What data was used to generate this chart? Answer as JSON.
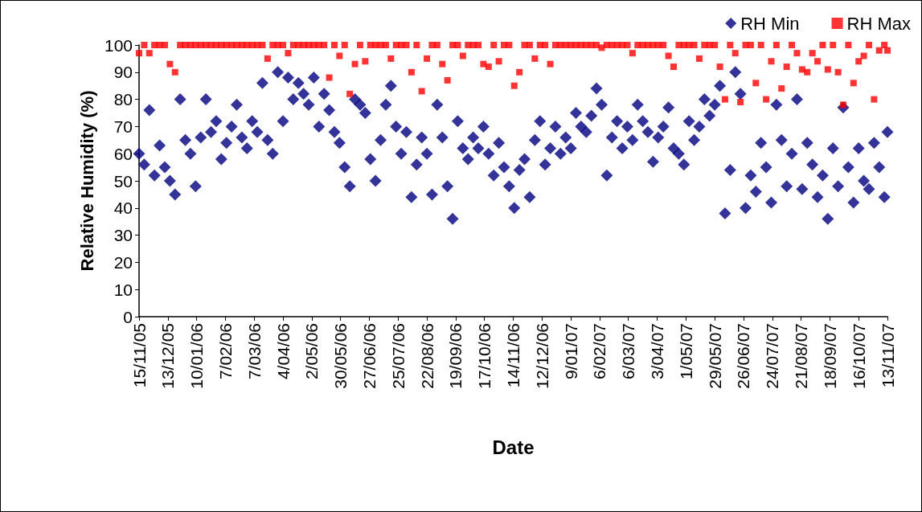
{
  "chart_data": {
    "type": "scatter",
    "xlabel": "Date",
    "ylabel": "Relative Humidity (%)",
    "legend": "top right",
    "grid": false,
    "xlim": [
      "2005-11-15",
      "2007-11-13"
    ],
    "xticks": [
      {
        "value": "2005-11-15",
        "label": "15/11/05"
      },
      {
        "value": "2005-12-13",
        "label": "13/12/05"
      },
      {
        "value": "2006-01-10",
        "label": "10/01/06"
      },
      {
        "value": "2006-02-07",
        "label": "7/02/06"
      },
      {
        "value": "2006-03-07",
        "label": "7/03/06"
      },
      {
        "value": "2006-04-04",
        "label": "4/04/06"
      },
      {
        "value": "2006-05-02",
        "label": "2/05/06"
      },
      {
        "value": "2006-05-30",
        "label": "30/05/06"
      },
      {
        "value": "2006-06-27",
        "label": "27/06/06"
      },
      {
        "value": "2006-07-25",
        "label": "25/07/06"
      },
      {
        "value": "2006-08-22",
        "label": "22/08/06"
      },
      {
        "value": "2006-09-19",
        "label": "19/09/06"
      },
      {
        "value": "2006-10-17",
        "label": "17/10/06"
      },
      {
        "value": "2006-11-14",
        "label": "14/11/06"
      },
      {
        "value": "2006-12-12",
        "label": "12/12/06"
      },
      {
        "value": "2007-01-09",
        "label": "9/01/07"
      },
      {
        "value": "2007-02-06",
        "label": "6/02/07"
      },
      {
        "value": "2007-03-06",
        "label": "6/03/07"
      },
      {
        "value": "2007-04-03",
        "label": "3/04/07"
      },
      {
        "value": "2007-05-01",
        "label": "1/05/07"
      },
      {
        "value": "2007-05-29",
        "label": "29/05/07"
      },
      {
        "value": "2007-06-26",
        "label": "26/06/07"
      },
      {
        "value": "2007-07-24",
        "label": "24/07/07"
      },
      {
        "value": "2007-08-21",
        "label": "21/08/07"
      },
      {
        "value": "2007-09-18",
        "label": "18/09/07"
      },
      {
        "value": "2007-10-16",
        "label": "16/10/07"
      },
      {
        "value": "2007-11-13",
        "label": "13/11/07"
      }
    ],
    "ylim": [
      0,
      100
    ],
    "yticks": [
      0,
      10,
      20,
      30,
      40,
      50,
      60,
      70,
      80,
      90,
      100
    ],
    "x": [
      "2005-11-15",
      "2005-11-20",
      "2005-11-25",
      "2005-11-30",
      "2005-12-05",
      "2005-12-10",
      "2005-12-15",
      "2005-12-20",
      "2005-12-25",
      "2005-12-30",
      "2006-01-04",
      "2006-01-09",
      "2006-01-14",
      "2006-01-19",
      "2006-01-24",
      "2006-01-29",
      "2006-02-03",
      "2006-02-08",
      "2006-02-13",
      "2006-02-18",
      "2006-02-23",
      "2006-02-28",
      "2006-03-05",
      "2006-03-10",
      "2006-03-15",
      "2006-03-20",
      "2006-03-25",
      "2006-03-30",
      "2006-04-04",
      "2006-04-09",
      "2006-04-14",
      "2006-04-19",
      "2006-04-24",
      "2006-04-29",
      "2006-05-04",
      "2006-05-09",
      "2006-05-14",
      "2006-05-19",
      "2006-05-24",
      "2006-05-29",
      "2006-06-03",
      "2006-06-08",
      "2006-06-13",
      "2006-06-18",
      "2006-06-23",
      "2006-06-28",
      "2006-07-03",
      "2006-07-08",
      "2006-07-13",
      "2006-07-18",
      "2006-07-23",
      "2006-07-28",
      "2006-08-02",
      "2006-08-07",
      "2006-08-12",
      "2006-08-17",
      "2006-08-22",
      "2006-08-27",
      "2006-09-01",
      "2006-09-06",
      "2006-09-11",
      "2006-09-16",
      "2006-09-21",
      "2006-09-26",
      "2006-10-01",
      "2006-10-06",
      "2006-10-11",
      "2006-10-16",
      "2006-10-21",
      "2006-10-26",
      "2006-10-31",
      "2006-11-05",
      "2006-11-10",
      "2006-11-15",
      "2006-11-20",
      "2006-11-25",
      "2006-11-30",
      "2006-12-05",
      "2006-12-10",
      "2006-12-15",
      "2006-12-20",
      "2006-12-25",
      "2006-12-30",
      "2007-01-04",
      "2007-01-09",
      "2007-01-14",
      "2007-01-19",
      "2007-01-24",
      "2007-01-29",
      "2007-02-03",
      "2007-02-08",
      "2007-02-13",
      "2007-02-18",
      "2007-02-23",
      "2007-02-28",
      "2007-03-05",
      "2007-03-10",
      "2007-03-15",
      "2007-03-20",
      "2007-03-25",
      "2007-03-30",
      "2007-04-04",
      "2007-04-09",
      "2007-04-14",
      "2007-04-19",
      "2007-04-24",
      "2007-04-29",
      "2007-05-04",
      "2007-05-09",
      "2007-05-14",
      "2007-05-19",
      "2007-05-24",
      "2007-05-29",
      "2007-06-03",
      "2007-06-08",
      "2007-06-13",
      "2007-06-18",
      "2007-06-23",
      "2007-06-28",
      "2007-07-03",
      "2007-07-08",
      "2007-07-13",
      "2007-07-18",
      "2007-07-23",
      "2007-07-28",
      "2007-08-02",
      "2007-08-07",
      "2007-08-12",
      "2007-08-17",
      "2007-08-22",
      "2007-08-27",
      "2007-09-01",
      "2007-09-06",
      "2007-09-11",
      "2007-09-16",
      "2007-09-21",
      "2007-09-26",
      "2007-10-01",
      "2007-10-06",
      "2007-10-11",
      "2007-10-16",
      "2007-10-21",
      "2007-10-26",
      "2007-10-31",
      "2007-11-05",
      "2007-11-10",
      "2007-11-13"
    ],
    "series": [
      {
        "name": "RH Min",
        "color": "#000080",
        "marker": "diamond",
        "values": [
          60,
          56,
          76,
          52,
          63,
          55,
          50,
          45,
          80,
          65,
          60,
          48,
          66,
          80,
          68,
          72,
          58,
          64,
          70,
          78,
          66,
          62,
          72,
          68,
          86,
          65,
          60,
          90,
          72,
          88,
          80,
          86,
          82,
          78,
          88,
          70,
          82,
          76,
          68,
          64,
          55,
          48,
          80,
          78,
          75,
          58,
          50,
          65,
          78,
          85,
          70,
          60,
          68,
          44,
          56,
          66,
          60,
          45,
          78,
          66,
          48,
          36,
          72,
          62,
          58,
          66,
          62,
          70,
          60,
          52,
          64,
          55,
          48,
          40,
          54,
          58,
          44,
          65,
          72,
          56,
          62,
          70,
          60,
          66,
          62,
          75,
          70,
          68,
          74,
          84,
          78,
          52,
          66,
          72,
          62,
          70,
          65,
          78,
          72,
          68,
          57,
          66,
          70,
          77,
          62,
          60,
          56,
          72,
          65,
          70,
          80,
          74,
          78,
          85,
          38,
          54,
          90,
          82,
          40,
          52,
          46,
          64,
          55,
          42,
          78,
          65,
          48,
          60,
          80,
          47,
          64,
          56,
          44,
          52,
          36,
          62,
          48,
          77,
          55,
          42,
          62,
          50,
          47,
          64,
          55,
          44,
          68
        ]
      },
      {
        "name": "RH Max",
        "color": "#ff0000",
        "marker": "square",
        "values": [
          97,
          100,
          97,
          100,
          100,
          100,
          93,
          90,
          100,
          100,
          100,
          100,
          100,
          100,
          100,
          100,
          100,
          100,
          100,
          100,
          100,
          100,
          100,
          100,
          100,
          95,
          100,
          100,
          100,
          97,
          100,
          100,
          100,
          100,
          100,
          100,
          100,
          88,
          100,
          96,
          100,
          82,
          93,
          100,
          94,
          100,
          100,
          100,
          100,
          95,
          100,
          100,
          100,
          90,
          100,
          83,
          95,
          100,
          100,
          93,
          87,
          100,
          100,
          96,
          100,
          100,
          100,
          93,
          92,
          100,
          94,
          100,
          100,
          85,
          90,
          100,
          100,
          95,
          100,
          100,
          93,
          100,
          100,
          100,
          100,
          100,
          100,
          100,
          100,
          100,
          99,
          100,
          100,
          100,
          100,
          100,
          97,
          100,
          100,
          100,
          100,
          100,
          100,
          96,
          92,
          100,
          100,
          100,
          100,
          95,
          100,
          100,
          100,
          92,
          80,
          100,
          97,
          79,
          100,
          100,
          86,
          100,
          80,
          94,
          100,
          84,
          92,
          100,
          97,
          91,
          90,
          97,
          94,
          100,
          91,
          100,
          90,
          78,
          100,
          86,
          94,
          96,
          100,
          80,
          98,
          100,
          98
        ]
      }
    ]
  }
}
